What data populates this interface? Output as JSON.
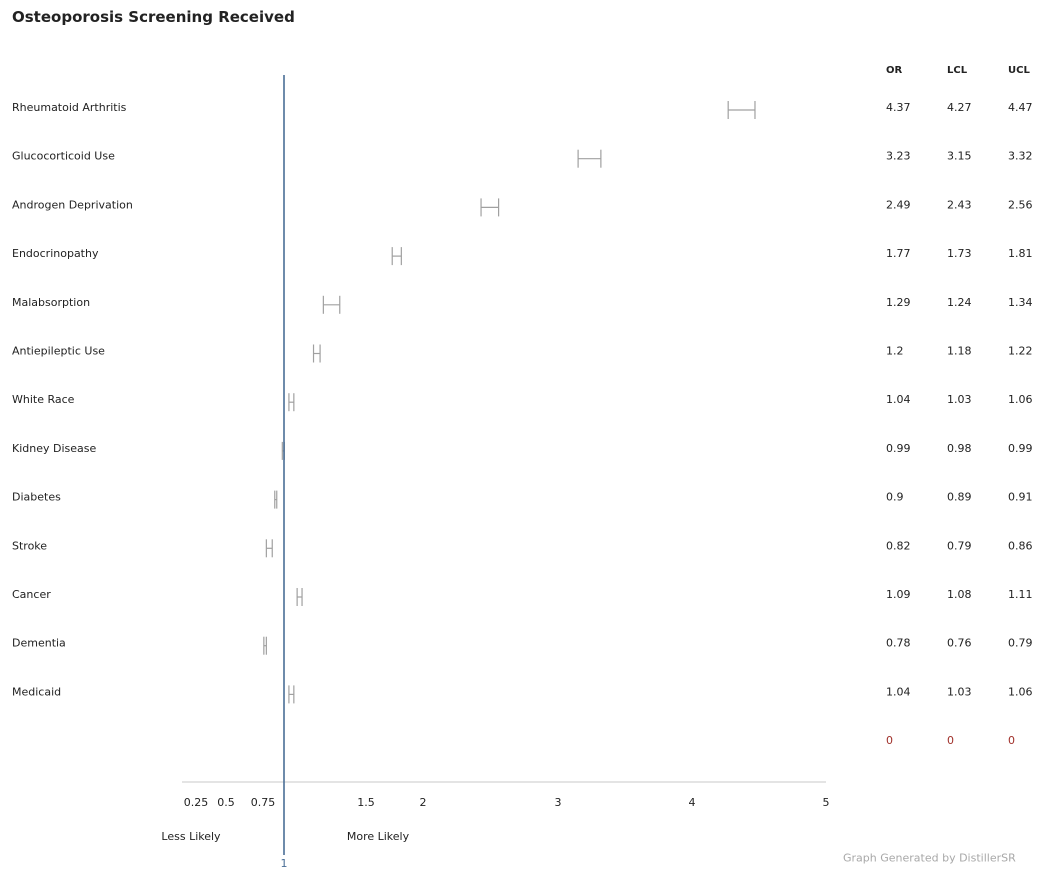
{
  "page": {
    "title": "Osteoporosis Screening Received",
    "footer": "Graph Generated by DistillerSR"
  },
  "chart_data": {
    "type": "forest",
    "title": "Osteoporosis Screening Received",
    "columns": [
      "OR",
      "LCL",
      "UCL"
    ],
    "rows": [
      {
        "label": "Rheumatoid Arthritis",
        "or": "4.37",
        "lcl": "4.27",
        "ucl": "4.47"
      },
      {
        "label": "Glucocorticoid Use",
        "or": "3.23",
        "lcl": "3.15",
        "ucl": "3.32"
      },
      {
        "label": "Androgen Deprivation",
        "or": "2.49",
        "lcl": "2.43",
        "ucl": "2.56"
      },
      {
        "label": "Endocrinopathy",
        "or": "1.77",
        "lcl": "1.73",
        "ucl": "1.81"
      },
      {
        "label": "Malabsorption",
        "or": "1.29",
        "lcl": "1.24",
        "ucl": "1.34"
      },
      {
        "label": "Antiepileptic Use",
        "or": "1.2",
        "lcl": "1.18",
        "ucl": "1.22"
      },
      {
        "label": "White Race",
        "or": "1.04",
        "lcl": "1.03",
        "ucl": "1.06"
      },
      {
        "label": "Kidney Disease",
        "or": "0.99",
        "lcl": "0.98",
        "ucl": "0.99"
      },
      {
        "label": "Diabetes",
        "or": "0.9",
        "lcl": "0.89",
        "ucl": "0.91"
      },
      {
        "label": "Stroke",
        "or": "0.82",
        "lcl": "0.79",
        "ucl": "0.86"
      },
      {
        "label": "Cancer",
        "or": "1.09",
        "lcl": "1.08",
        "ucl": "1.11"
      },
      {
        "label": "Dementia",
        "or": "0.78",
        "lcl": "0.76",
        "ucl": "0.79"
      },
      {
        "label": "Medicaid",
        "or": "1.04",
        "lcl": "1.03",
        "ucl": "1.06"
      },
      {
        "label": "",
        "or": "0",
        "lcl": "0",
        "ucl": "0"
      }
    ],
    "x_ticks": [
      "0.25",
      "0.5",
      "0.75",
      "1",
      "1.5",
      "2",
      "3",
      "4",
      "5"
    ],
    "reference_value": 1,
    "less_label": "Less Likely",
    "more_label": "More Likely",
    "colors": {
      "ci": "#a0a0a0",
      "reference_line": "#4a6e96",
      "axis": "#c8c8c8",
      "zero_row": "#a0302a"
    }
  }
}
